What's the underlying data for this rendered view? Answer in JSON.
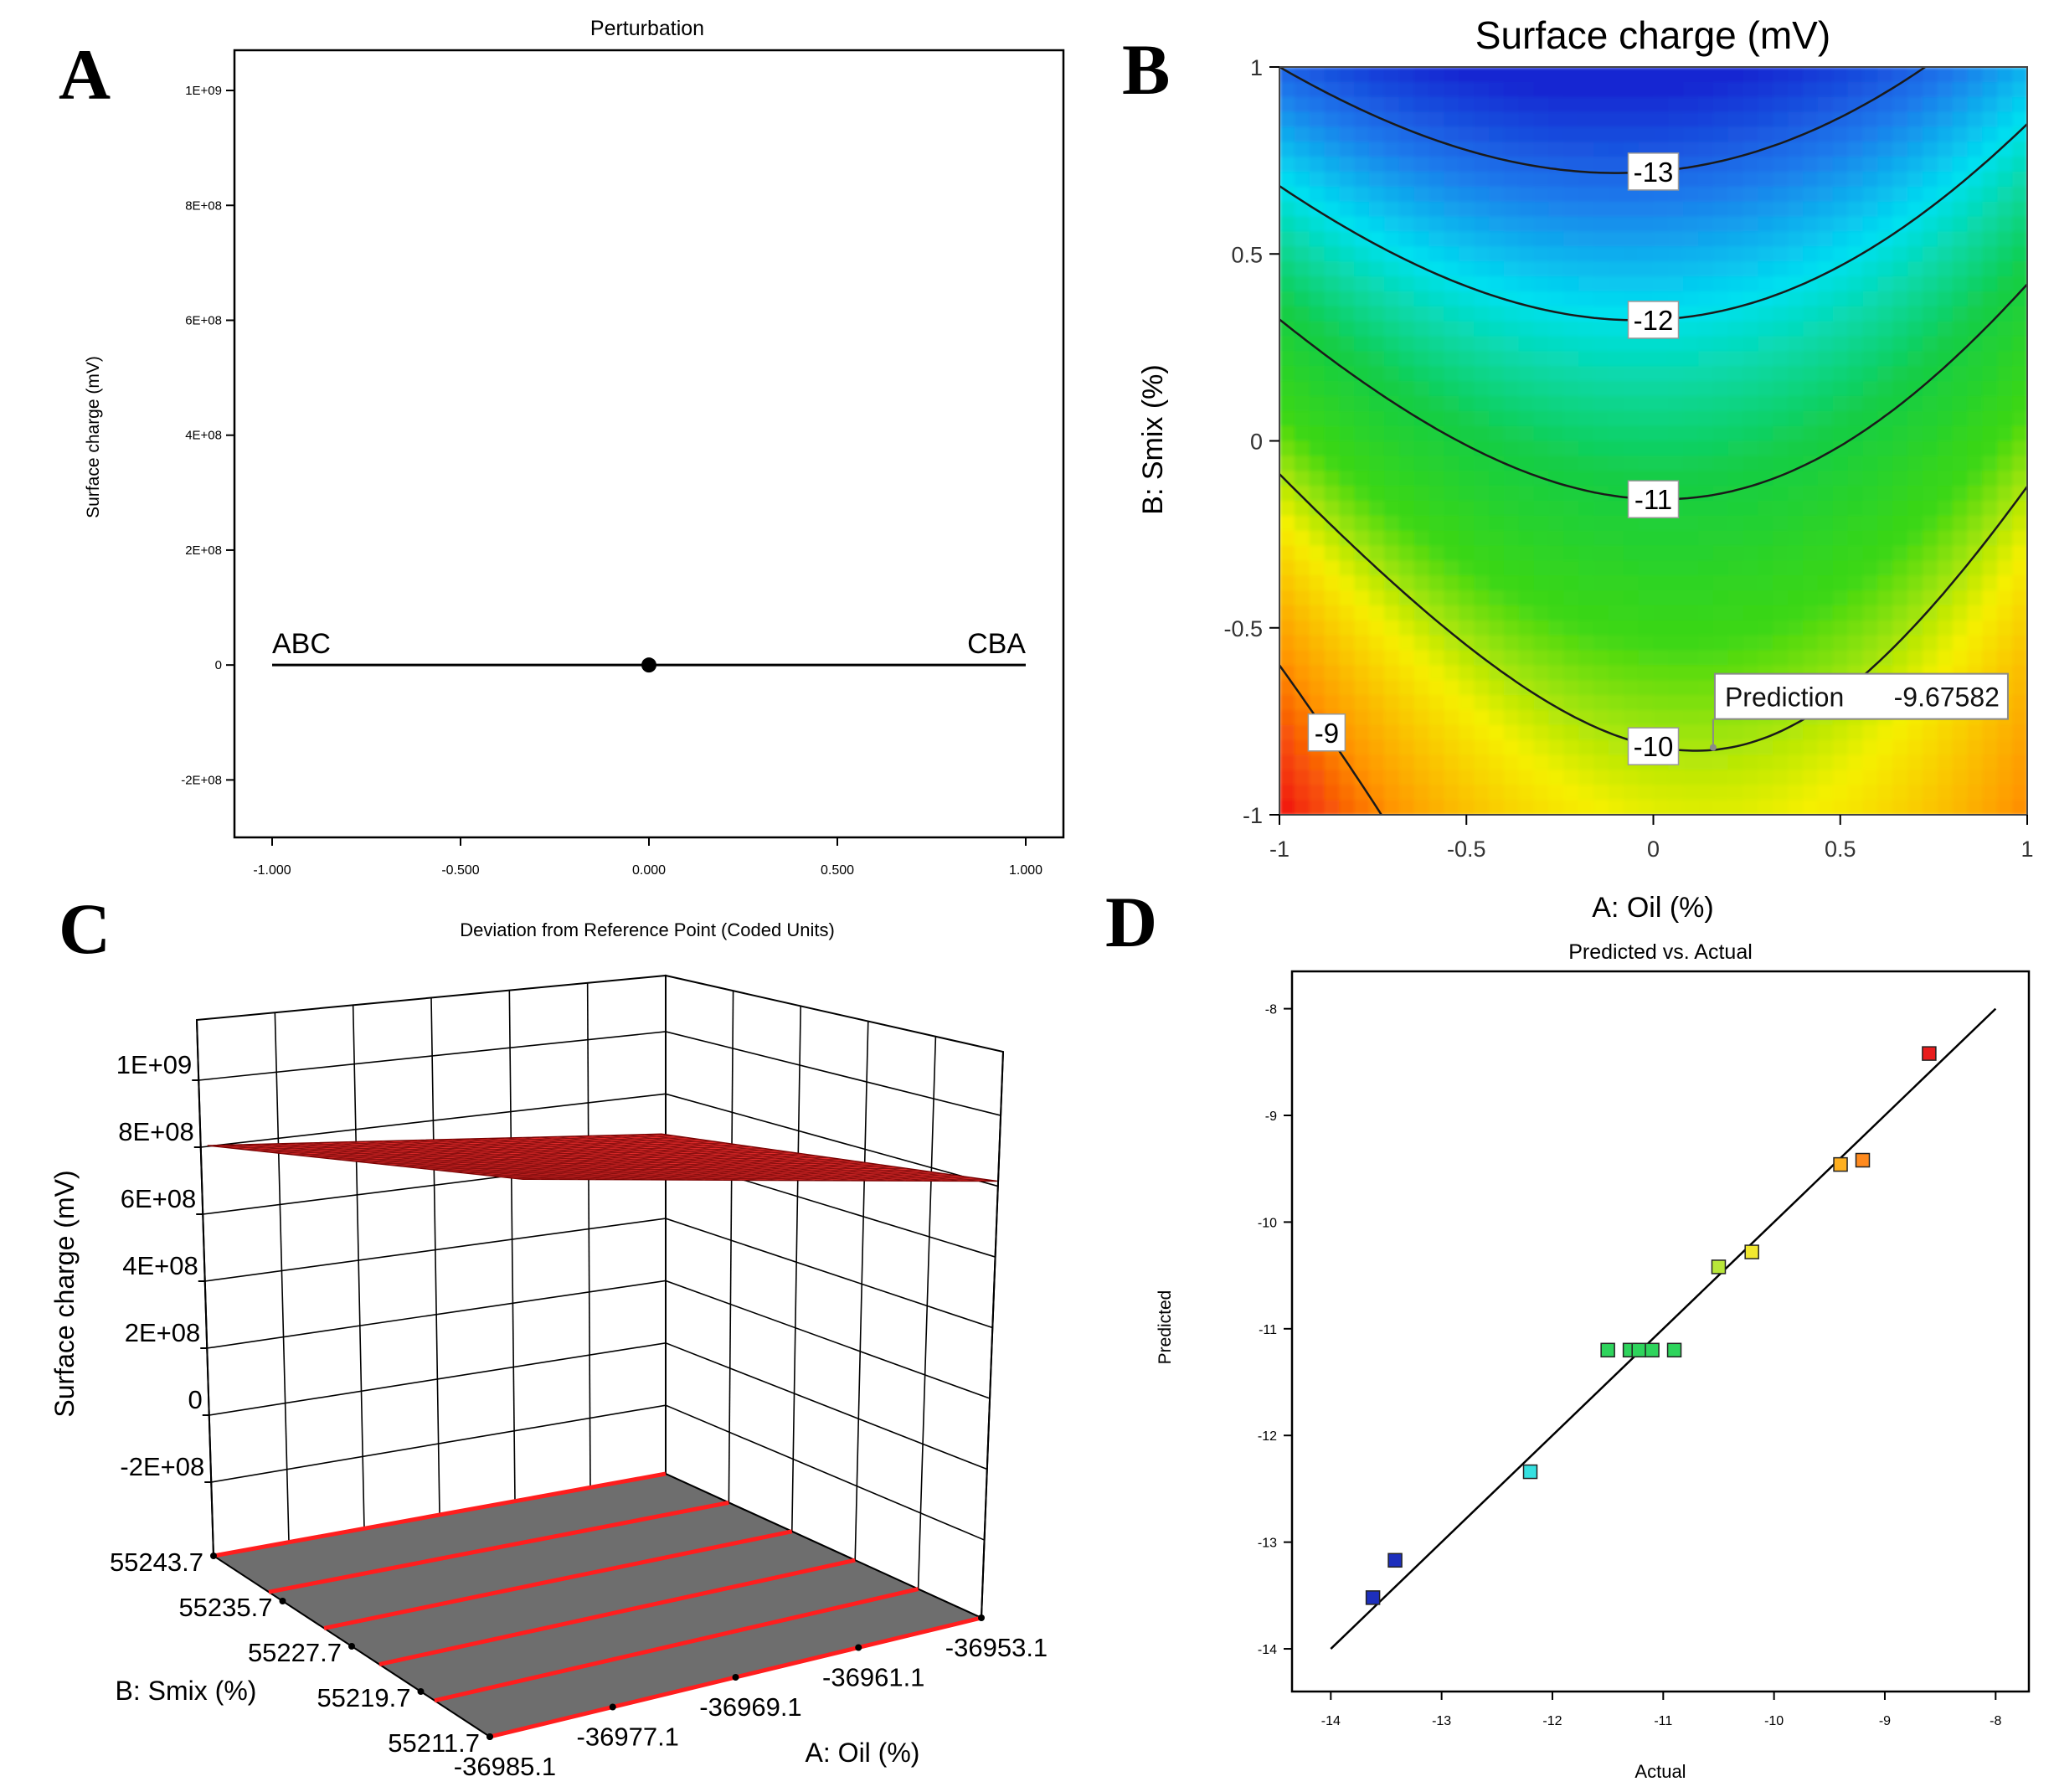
{
  "panels": [
    {
      "letter": "A"
    },
    {
      "letter": "B"
    },
    {
      "letter": "C"
    },
    {
      "letter": "D"
    }
  ],
  "colors": {
    "axis": "#000000",
    "surface": "#e0282a",
    "floor": "#6e6e6e",
    "floor_line": "#ff2020"
  },
  "chart_data": [
    {
      "id": "A",
      "type": "line",
      "title": "Perturbation",
      "xlabel": "Deviation from Reference Point (Coded Units)",
      "ylabel": "Surface charge (mV)",
      "xlim": [
        -1.1,
        1.1
      ],
      "ylim": [
        -300000000,
        1070000000
      ],
      "x_ticks": [
        -1,
        -0.5,
        0,
        0.5,
        1
      ],
      "x_tick_labels": [
        "-1.000",
        "-0.500",
        "0.000",
        "0.500",
        "1.000"
      ],
      "y_ticks": [
        -200000000,
        0,
        200000000,
        400000000,
        600000000,
        800000000,
        1000000000
      ],
      "y_tick_labels": [
        "-2E+08",
        "0",
        "2E+08",
        "4E+08",
        "6E+08",
        "8E+08",
        "1E+09"
      ],
      "series": [
        {
          "x": [
            -1,
            1
          ],
          "y": [
            0,
            0
          ]
        }
      ],
      "line_labels": [
        {
          "text": "ABC",
          "x": -1,
          "y": 0
        },
        {
          "text": "CBA",
          "x": 1,
          "y": 0
        }
      ],
      "reference_point": {
        "x": 0,
        "y": 0
      }
    },
    {
      "id": "B",
      "type": "heatmap",
      "title": "Surface charge (mV)",
      "xlabel": "A: Oil (%)",
      "ylabel": "B: Smix (%)",
      "xlim": [
        -1,
        1
      ],
      "ylim": [
        -1,
        1
      ],
      "x_ticks": [
        -1,
        -0.5,
        0,
        0.5,
        1
      ],
      "x_tick_labels": [
        "-1",
        "-0.5",
        "0",
        "0.5",
        "1"
      ],
      "y_ticks": [
        -1,
        -0.5,
        0,
        0.5,
        1
      ],
      "y_tick_labels": [
        "-1",
        "-0.5",
        "0",
        "0.5",
        "1"
      ],
      "color_range": [
        -13.6,
        -8.4
      ],
      "contours": [
        {
          "level": -13,
          "label": "-13"
        },
        {
          "level": -12,
          "label": "-12"
        },
        {
          "level": -11,
          "label": "-11"
        },
        {
          "level": -10,
          "label": "-10"
        },
        {
          "level": -9,
          "label": "-9"
        }
      ],
      "prediction": {
        "label": "Prediction",
        "value": "-9.67582",
        "x": 0.16,
        "y": -0.82
      }
    },
    {
      "id": "C",
      "type": "area",
      "title": "",
      "zlabel": "Surface charge (mV)",
      "xlabel": "A: Oil (%)",
      "ylabel": "B: Smix (%)",
      "z_tick_labels": [
        "1E+09",
        "8E+08",
        "6E+08",
        "4E+08",
        "2E+08",
        "0",
        "-2E+08"
      ],
      "x_tick_labels": [
        "-36985.1",
        "-36977.1",
        "-36969.1",
        "-36961.1",
        "-36953.1"
      ],
      "y_tick_labels": [
        "55243.7",
        "55235.7",
        "55227.7",
        "55219.7",
        "55211.7"
      ],
      "surface_value": 800000000
    },
    {
      "id": "D",
      "type": "scatter",
      "title": "Predicted vs. Actual",
      "xlabel": "Actual",
      "ylabel": "Predicted",
      "xlim": [
        -14.35,
        -7.7
      ],
      "ylim": [
        -14.4,
        -7.65
      ],
      "x_ticks": [
        -14,
        -13,
        -12,
        -11,
        -10,
        -9,
        -8
      ],
      "x_tick_labels": [
        "-14",
        "-13",
        "-12",
        "-11",
        "-10",
        "-9",
        "-8"
      ],
      "y_ticks": [
        -14,
        -13,
        -12,
        -11,
        -10,
        -9,
        -8
      ],
      "y_tick_labels": [
        "-14",
        "-13",
        "-12",
        "-11",
        "-10",
        "-9",
        "-8"
      ],
      "fit_line": {
        "x": [
          -14,
          -8
        ],
        "y": [
          -14,
          -8
        ]
      },
      "points": [
        {
          "x": -13.62,
          "y": -13.52,
          "color": "#1d2fbd"
        },
        {
          "x": -13.42,
          "y": -13.17,
          "color": "#1d2fbd"
        },
        {
          "x": -12.2,
          "y": -12.34,
          "color": "#35e0e0"
        },
        {
          "x": -11.5,
          "y": -11.2,
          "color": "#2ed45c"
        },
        {
          "x": -11.3,
          "y": -11.2,
          "color": "#2ed45c"
        },
        {
          "x": -11.22,
          "y": -11.2,
          "color": "#2ed45c"
        },
        {
          "x": -11.1,
          "y": -11.2,
          "color": "#2ed45c"
        },
        {
          "x": -10.9,
          "y": -11.2,
          "color": "#2ed45c"
        },
        {
          "x": -10.5,
          "y": -10.42,
          "color": "#b8e63a"
        },
        {
          "x": -10.2,
          "y": -10.28,
          "color": "#f2e830"
        },
        {
          "x": -9.4,
          "y": -9.46,
          "color": "#ffb020"
        },
        {
          "x": -9.2,
          "y": -9.42,
          "color": "#ff8a1e"
        },
        {
          "x": -8.6,
          "y": -8.42,
          "color": "#e81c1c"
        }
      ]
    }
  ]
}
